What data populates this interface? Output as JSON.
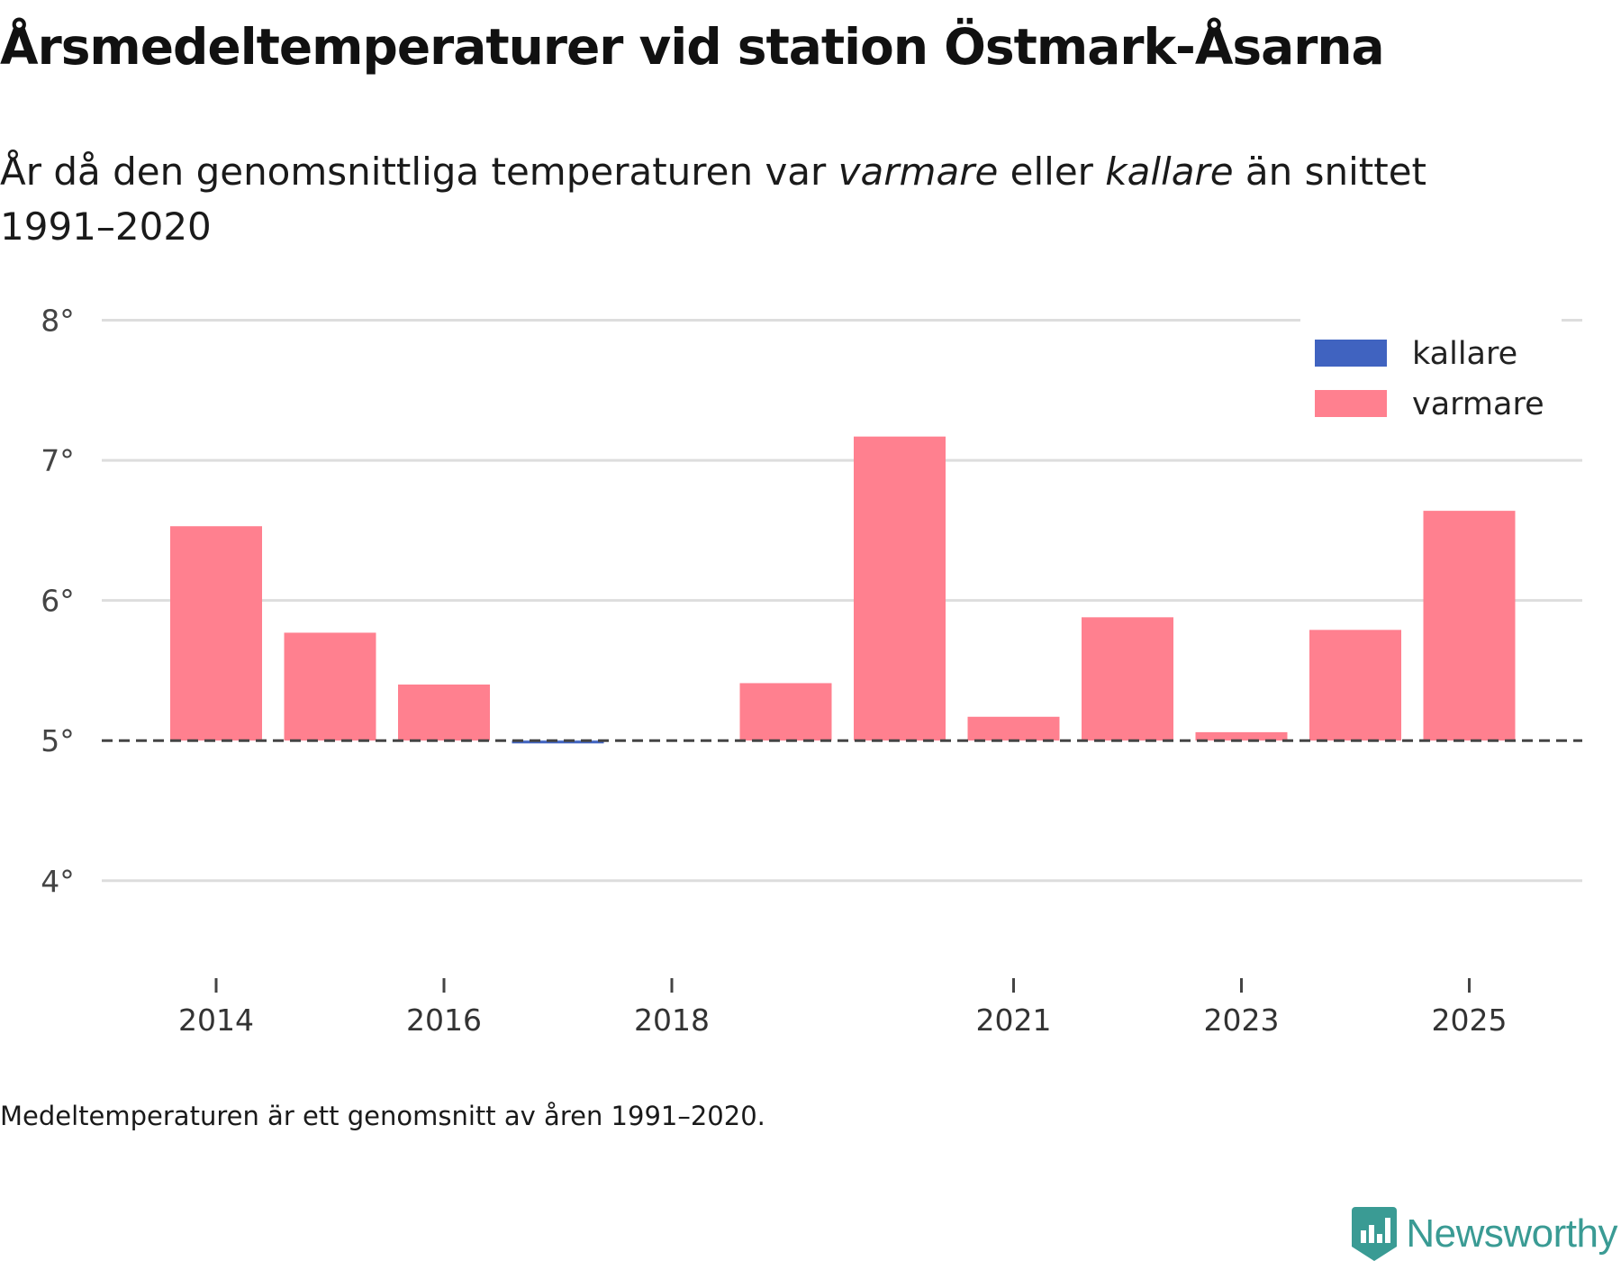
{
  "title": "Årsmedeltemperaturer vid station Östmark-Åsarna",
  "subtitle": {
    "part1": "År då den genomsnittliga temperaturen var ",
    "warm_word": "varmare",
    "part2": " eller ",
    "cold_word": "kallare",
    "part3": " än snittet 1991–2020"
  },
  "footnote": "Medeltemperaturen är ett genomsnitt av åren 1991–2020.",
  "brand": "Newsworthy",
  "colors": {
    "warm": "#ff808f",
    "cold": "#4063c0",
    "grid": "#dddddd",
    "baseline": "#444444",
    "brand": "#3a9b94"
  },
  "chart_data": {
    "type": "bar",
    "title": "Årsmedeltemperaturer vid station Östmark-Åsarna",
    "xlabel": "",
    "ylabel": "",
    "baseline": 5.0,
    "ylim": [
      3.6,
      8.1
    ],
    "yticks": [
      4,
      5,
      6,
      7,
      8
    ],
    "ytick_suffix": "°",
    "xticks": [
      2014,
      2016,
      2018,
      2021,
      2023,
      2025
    ],
    "categories": [
      2014,
      2015,
      2016,
      2017,
      2018,
      2019,
      2020,
      2021,
      2022,
      2023,
      2024,
      2025
    ],
    "values": [
      6.53,
      5.77,
      5.4,
      4.98,
      null,
      5.41,
      7.17,
      5.17,
      5.88,
      5.06,
      5.79,
      6.64
    ],
    "legend": [
      {
        "key": "cold",
        "label": "kallare"
      },
      {
        "key": "warm",
        "label": "varmare"
      }
    ],
    "legend_position": "top-right",
    "grid": true
  }
}
